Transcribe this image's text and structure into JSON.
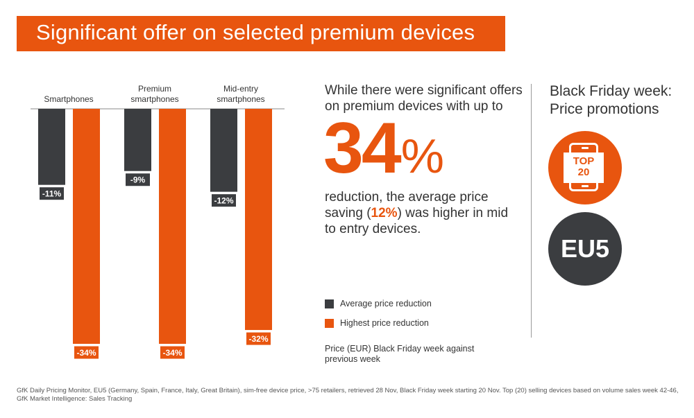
{
  "title": "Significant offer on selected premium devices",
  "colors": {
    "accent": "#e8550f",
    "dark": "#3b3d40"
  },
  "chart_data": {
    "type": "bar",
    "orientation": "vertical-downward",
    "categories": [
      [
        "Smartphones"
      ],
      [
        "Premium",
        "smartphones"
      ],
      [
        "Mid-entry",
        "smartphones"
      ]
    ],
    "series": [
      {
        "name": "Average price reduction",
        "color": "#3b3d40",
        "values": [
          -11,
          -9,
          -12
        ],
        "labels": [
          "-11%",
          "-9%",
          "-12%"
        ]
      },
      {
        "name": "Highest price reduction",
        "color": "#e8550f",
        "values": [
          -34,
          -34,
          -32
        ],
        "labels": [
          "-34%",
          "-34%",
          "-32%"
        ]
      }
    ],
    "ylim": [
      -34,
      0
    ],
    "grid": false,
    "legend_position": "right"
  },
  "headline": {
    "text": "While there were significant offers on premium devices with up to"
  },
  "big_number": {
    "value": "34",
    "suffix": "%"
  },
  "body": {
    "before": "reduction, the average price saving (",
    "highlight": "12%",
    "after": ") was higher in mid to entry devices."
  },
  "note": "Price (EUR) Black Friday week against previous week",
  "side": {
    "title_line1": "Black Friday week:",
    "title_line2": "Price promotions",
    "badge_top_line1": "TOP",
    "badge_top_line2": "20",
    "badge_region": "EU5",
    "icons": [
      "smartphone-icon"
    ]
  },
  "footer": {
    "line1": "GfK Daily Pricing Monitor, EU5 (Germany, Spain, France, Italy, Great Britain), sim-free device price, >75 retailers, retrieved 28 Nov, Black Friday week starting 20 Nov. Top (20) selling devices based on volume sales week 42-46,",
    "line2": "GfK Market Intelligence: Sales Tracking"
  }
}
